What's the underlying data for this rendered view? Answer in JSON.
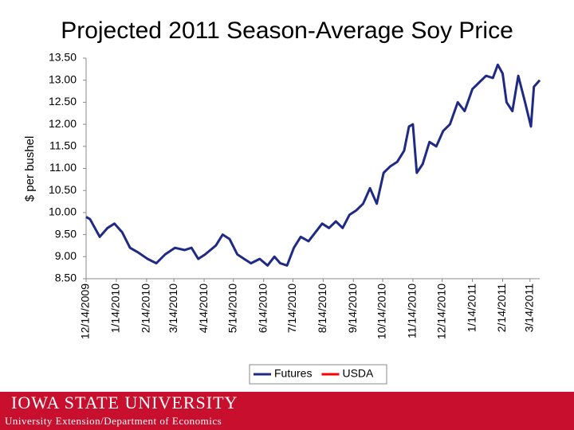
{
  "chart_data": {
    "type": "line",
    "title": "Projected 2011 Season-Average Soy Price",
    "ylabel": "$ per bushel",
    "x": [
      "2009-12-14",
      "2009-12-18",
      "2009-12-28",
      "2010-01-05",
      "2010-01-12",
      "2010-01-20",
      "2010-01-28",
      "2010-02-05",
      "2010-02-15",
      "2010-02-24",
      "2010-03-05",
      "2010-03-15",
      "2010-03-25",
      "2010-04-01",
      "2010-04-08",
      "2010-04-15",
      "2010-04-26",
      "2010-05-03",
      "2010-05-10",
      "2010-05-18",
      "2010-05-25",
      "2010-06-01",
      "2010-06-10",
      "2010-06-18",
      "2010-06-25",
      "2010-07-01",
      "2010-07-08",
      "2010-07-15",
      "2010-07-22",
      "2010-07-30",
      "2010-08-06",
      "2010-08-13",
      "2010-08-20",
      "2010-08-27",
      "2010-09-03",
      "2010-09-10",
      "2010-09-17",
      "2010-09-24",
      "2010-10-01",
      "2010-10-08",
      "2010-10-15",
      "2010-10-22",
      "2010-10-29",
      "2010-11-05",
      "2010-11-10",
      "2010-11-14",
      "2010-11-18",
      "2010-11-24",
      "2010-12-01",
      "2010-12-08",
      "2010-12-15",
      "2010-12-22",
      "2010-12-30",
      "2011-01-06",
      "2011-01-14",
      "2011-01-21",
      "2011-01-28",
      "2011-02-04",
      "2011-02-09",
      "2011-02-14",
      "2011-02-18",
      "2011-02-24",
      "2011-03-02",
      "2011-03-09",
      "2011-03-15",
      "2011-03-18",
      "2011-03-24"
    ],
    "series": [
      {
        "name": "Futures",
        "color": "#1f2a86",
        "values": [
          9.9,
          9.85,
          9.45,
          9.65,
          9.75,
          9.55,
          9.2,
          9.1,
          8.95,
          8.85,
          9.05,
          9.2,
          9.15,
          9.2,
          8.95,
          9.05,
          9.25,
          9.5,
          9.4,
          9.05,
          8.95,
          8.85,
          8.95,
          8.8,
          9.0,
          8.85,
          8.8,
          9.2,
          9.45,
          9.35,
          9.55,
          9.75,
          9.65,
          9.8,
          9.65,
          9.95,
          10.05,
          10.2,
          10.55,
          10.2,
          10.9,
          11.05,
          11.15,
          11.4,
          11.95,
          12.0,
          10.9,
          11.1,
          11.6,
          11.5,
          11.85,
          12.0,
          12.5,
          12.3,
          12.8,
          12.95,
          13.1,
          13.05,
          13.35,
          13.15,
          12.5,
          12.3,
          13.1,
          12.5,
          11.95,
          12.85,
          13.0
        ]
      },
      {
        "name": "USDA",
        "color": "#ff0000",
        "values": [
          null,
          null,
          null,
          null,
          null,
          null,
          null,
          null,
          null,
          null,
          null,
          null,
          null,
          null,
          null,
          null,
          null,
          null,
          null,
          null,
          null,
          null,
          null,
          null,
          null,
          null,
          null,
          null,
          null,
          null,
          null,
          null,
          null,
          null,
          null,
          null,
          null,
          null,
          null,
          null,
          null,
          null,
          null,
          null,
          null,
          null,
          null,
          null,
          null,
          null,
          null,
          null,
          null,
          null,
          null,
          null,
          null,
          null,
          null,
          null,
          null,
          null,
          null,
          null,
          null,
          null,
          null
        ]
      }
    ],
    "xlim": [
      "2009-12-14",
      "2011-03-24"
    ],
    "xticks": [
      {
        "value": "2009-12-14",
        "label": "12/14/2009"
      },
      {
        "value": "2010-01-14",
        "label": "1/14/2010"
      },
      {
        "value": "2010-02-14",
        "label": "2/14/2010"
      },
      {
        "value": "2010-03-14",
        "label": "3/14/2010"
      },
      {
        "value": "2010-04-14",
        "label": "4/14/2010"
      },
      {
        "value": "2010-05-14",
        "label": "5/14/2010"
      },
      {
        "value": "2010-06-14",
        "label": "6/14/2010"
      },
      {
        "value": "2010-07-14",
        "label": "7/14/2010"
      },
      {
        "value": "2010-08-14",
        "label": "8/14/2010"
      },
      {
        "value": "2010-09-14",
        "label": "9/14/2010"
      },
      {
        "value": "2010-10-14",
        "label": "10/14/2010"
      },
      {
        "value": "2010-11-14",
        "label": "11/14/2010"
      },
      {
        "value": "2010-12-14",
        "label": "12/14/2010"
      },
      {
        "value": "2011-01-14",
        "label": "1/14/2011"
      },
      {
        "value": "2011-02-14",
        "label": "2/14/2011"
      },
      {
        "value": "2011-03-14",
        "label": "3/14/2011"
      }
    ],
    "ylim": [
      8.5,
      13.5
    ],
    "yticks": [
      {
        "value": 8.5,
        "label": "8.50"
      },
      {
        "value": 9,
        "label": "9.00"
      },
      {
        "value": 9.5,
        "label": "9.50"
      },
      {
        "value": 10,
        "label": "10.00"
      },
      {
        "value": 10.5,
        "label": "10.50"
      },
      {
        "value": 11,
        "label": "11.00"
      },
      {
        "value": 11.5,
        "label": "11.50"
      },
      {
        "value": 12,
        "label": "12.00"
      },
      {
        "value": 12.5,
        "label": "12.50"
      },
      {
        "value": 13,
        "label": "13.00"
      },
      {
        "value": 13.5,
        "label": "13.50"
      }
    ],
    "grid": false,
    "legend": "bottom"
  },
  "footer": {
    "logo": "IOWA STATE UNIVERSITY",
    "subtitle": "University Extension/Department of Economics"
  }
}
